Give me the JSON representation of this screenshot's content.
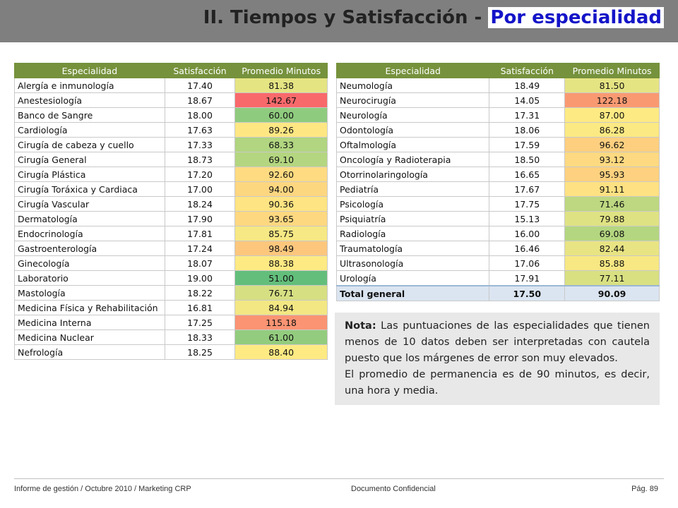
{
  "title": {
    "main": "II. Tiempos y  Satisfacción - ",
    "sub": "Por especialidad"
  },
  "headers": {
    "especialidad": "Especialidad",
    "satisfaccion": "Satisfacción",
    "minutos": "Promedio Minutos"
  },
  "colors": {
    "header_green": "#76923c",
    "total_row": "#dbe5f1",
    "red": "#f8696b",
    "green": "#63be7b"
  },
  "left_table": [
    {
      "name": "Alergía e inmunología",
      "sat": "17.40",
      "min": "81.38",
      "color": "#e5e483"
    },
    {
      "name": "Anestesiología",
      "sat": "18.67",
      "min": "142.67",
      "color": "#f8696b"
    },
    {
      "name": "Banco de Sangre",
      "sat": "18.00",
      "min": "60.00",
      "color": "#8fcb7e"
    },
    {
      "name": "Cardiología",
      "sat": "17.63",
      "min": "89.26",
      "color": "#fee783"
    },
    {
      "name": "Cirugía de cabeza y cuello",
      "sat": "17.33",
      "min": "68.33",
      "color": "#b1d580"
    },
    {
      "name": "Cirugía General",
      "sat": "18.73",
      "min": "69.10",
      "color": "#b4d680"
    },
    {
      "name": "Cirugía Plástica",
      "sat": "17.20",
      "min": "92.60",
      "color": "#fedb81"
    },
    {
      "name": "Cirugía Toráxica y Cardiaca",
      "sat": "17.00",
      "min": "94.00",
      "color": "#fdd680"
    },
    {
      "name": "Cirugía Vascular",
      "sat": "18.24",
      "min": "90.36",
      "color": "#fee482"
    },
    {
      "name": "Dermatología",
      "sat": "17.90",
      "min": "93.65",
      "color": "#fdd880"
    },
    {
      "name": "Endocrinología",
      "sat": "17.81",
      "min": "85.75",
      "color": "#f6e884"
    },
    {
      "name": "Gastroenterología",
      "sat": "17.24",
      "min": "98.49",
      "color": "#fcc77d"
    },
    {
      "name": "Ginecología",
      "sat": "18.07",
      "min": "88.38",
      "color": "#feea83"
    },
    {
      "name": "Laboratorio",
      "sat": "19.00",
      "min": "51.00",
      "color": "#63be7b"
    },
    {
      "name": "Mastología",
      "sat": "18.22",
      "min": "76.71",
      "color": "#d6df82"
    },
    {
      "name": "Medicina Física y Rehabilitación",
      "sat": "16.81",
      "min": "84.94",
      "color": "#f3e783"
    },
    {
      "name": "Medicina Interna",
      "sat": "17.25",
      "min": "115.18",
      "color": "#fa9473"
    },
    {
      "name": "Medicina Nuclear",
      "sat": "18.33",
      "min": "61.00",
      "color": "#93cc7e"
    },
    {
      "name": "Nefrología",
      "sat": "18.25",
      "min": "88.40",
      "color": "#feea83"
    }
  ],
  "right_table": [
    {
      "name": "Neumología",
      "sat": "18.49",
      "min": "81.50",
      "color": "#e5e483"
    },
    {
      "name": "Neurocirugía",
      "sat": "14.05",
      "min": "122.18",
      "color": "#f99972"
    },
    {
      "name": "Neurología",
      "sat": "17.31",
      "min": "87.00",
      "color": "#feea83"
    },
    {
      "name": "Odontología",
      "sat": "18.06",
      "min": "86.28",
      "color": "#fbe983"
    },
    {
      "name": "Oftalmología",
      "sat": "17.59",
      "min": "96.62",
      "color": "#fdcf7f"
    },
    {
      "name": "Oncología y Radioterapia",
      "sat": "18.50",
      "min": "93.12",
      "color": "#fdd981"
    },
    {
      "name": "Otorrinolaringología",
      "sat": "16.65",
      "min": "95.93",
      "color": "#fdd17f"
    },
    {
      "name": "Pediatría",
      "sat": "17.67",
      "min": "91.11",
      "color": "#fee182"
    },
    {
      "name": "Psicología",
      "sat": "17.75",
      "min": "71.46",
      "color": "#bdd881"
    },
    {
      "name": "Psiquiatría",
      "sat": "15.13",
      "min": "79.88",
      "color": "#dfe283"
    },
    {
      "name": "Radiología",
      "sat": "16.00",
      "min": "69.08",
      "color": "#b4d680"
    },
    {
      "name": "Traumatología",
      "sat": "16.46",
      "min": "82.44",
      "color": "#e8e483"
    },
    {
      "name": "Ultrasonología",
      "sat": "17.06",
      "min": "85.88",
      "color": "#f7e883"
    },
    {
      "name": "Urología",
      "sat": "17.91",
      "min": "77.11",
      "color": "#d8e082"
    }
  ],
  "total": {
    "name": "Total general",
    "sat": "17.50",
    "min": "90.09"
  },
  "note": {
    "label": "Nota:",
    "text1": " Las puntuaciones de las especialidades que tienen menos de 10 datos deben ser interpretadas con cautela puesto que los márgenes de error son muy elevados.",
    "text2": "El promedio de permanencia es de 90 minutos, es decir, una hora y media."
  },
  "footer": {
    "left": "Informe de gestión / Octubre 2010 / Marketing CRP",
    "center": "Documento Confidencial",
    "right": "Pág. 89"
  }
}
